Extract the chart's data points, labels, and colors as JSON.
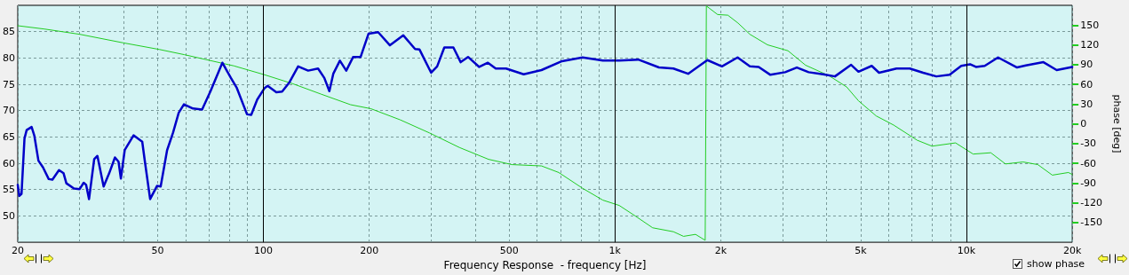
{
  "chart_data": {
    "type": "line",
    "xlabel": "Frequency Response  - frequency [Hz]",
    "y2label": "phase [deg]",
    "log": "x",
    "grid": true,
    "marker": "none",
    "line_style": "solid",
    "xlim": [
      20,
      20000
    ],
    "xticks": [
      20,
      {
        "value": 30,
        "label": null
      },
      {
        "value": 40,
        "label": null
      },
      50,
      {
        "value": 60,
        "label": null
      },
      {
        "value": 70,
        "label": null
      },
      {
        "value": 80,
        "label": null
      },
      {
        "value": 90,
        "label": null
      },
      100,
      200,
      {
        "value": 300,
        "label": null
      },
      {
        "value": 400,
        "label": null
      },
      500,
      {
        "value": 600,
        "label": null
      },
      {
        "value": 700,
        "label": null
      },
      {
        "value": 800,
        "label": null
      },
      {
        "value": 900,
        "label": null
      },
      {
        "value": 1000,
        "label": "1k"
      },
      {
        "value": 2000,
        "label": "2k"
      },
      {
        "value": 3000,
        "label": null
      },
      {
        "value": 4000,
        "label": null
      },
      {
        "value": 5000,
        "label": "5k"
      },
      {
        "value": 6000,
        "label": null
      },
      {
        "value": 7000,
        "label": null
      },
      {
        "value": 8000,
        "label": null
      },
      {
        "value": 9000,
        "label": null
      },
      {
        "value": 10000,
        "label": "10k"
      },
      {
        "value": 20000,
        "label": "20k"
      }
    ],
    "ylim": [
      45,
      90
    ],
    "yticks": [
      50,
      55,
      60,
      65,
      70,
      75,
      80,
      85
    ],
    "y2lim": [
      -180,
      180
    ],
    "y2ticks": [
      -150,
      -120,
      -90,
      -60,
      -30,
      0,
      30,
      60,
      90,
      120,
      150
    ],
    "annotations": [
      "show phase"
    ],
    "series": [
      {
        "color": "#0000c8",
        "x": [
          20,
          20.2,
          20.5,
          20.9,
          21.2,
          21.9,
          22.3,
          22.9,
          23.6,
          24.5,
          25.1,
          26.2,
          27,
          27.5,
          28.9,
          30,
          30.8,
          31.3,
          31.9,
          33,
          33.7,
          35.1,
          36.4,
          37.8,
          38.7,
          39.3,
          40.3,
          42.7,
          45.2,
          46,
          47.6,
          49.8,
          51,
          53.2,
          55.3,
          57.4,
          59.4,
          63,
          66.9,
          70.7,
          76.4,
          80.8,
          84,
          89.8,
          92.3,
          96,
          100.8,
          102.8,
          108.8,
          113,
          118.6,
          125.5,
          134,
          143,
          149,
          154,
          158,
          165,
          172,
          180,
          189,
          199,
          212,
          229,
          250,
          270,
          278,
          300,
          312,
          327,
          347,
          364,
          382,
          411,
          435,
          458,
          490,
          550,
          618,
          707,
          809,
          924,
          1028,
          1165,
          1334,
          1467,
          1615,
          1695,
          1832,
          2015,
          2233,
          2420,
          2564,
          2768,
          3049,
          3292,
          3556,
          3911,
          4225,
          4698,
          4929,
          5376,
          5640,
          6325,
          6900,
          7530,
          8210,
          8955,
          9665,
          10240,
          10640,
          11270,
          12300,
          13930,
          14760,
          16560,
          18060,
          20000
        ],
        "values": [
          55.9,
          53.8,
          54.2,
          64.7,
          66.3,
          66.9,
          65.2,
          60.5,
          59.2,
          57,
          56.9,
          58.7,
          58.1,
          56.2,
          55.2,
          55.1,
          56.3,
          55.9,
          53.2,
          60.8,
          61.4,
          55.6,
          58.1,
          61.1,
          60.3,
          57.1,
          62.5,
          65.3,
          64.1,
          60.3,
          53.2,
          55.7,
          55.6,
          62.5,
          65.8,
          69.6,
          71.2,
          70.4,
          70.2,
          73.7,
          79.1,
          76.2,
          74.3,
          69.3,
          69.2,
          72.1,
          74.3,
          74.7,
          73.5,
          73.6,
          75.4,
          78.4,
          77.6,
          78,
          76.2,
          73.7,
          77,
          79.5,
          77.6,
          80.2,
          80.2,
          84.6,
          84.9,
          82.4,
          84.3,
          81.7,
          81.6,
          77.2,
          78.4,
          82,
          82,
          79.2,
          80.2,
          78.3,
          79.1,
          78,
          78,
          76.9,
          77.7,
          79.4,
          80.1,
          79.5,
          79.5,
          79.7,
          78.2,
          78,
          77,
          78,
          79.6,
          78.4,
          80.1,
          78.4,
          78.3,
          76.8,
          77.3,
          78.2,
          77.3,
          76.9,
          76.5,
          78.7,
          77.4,
          78.5,
          77.2,
          78,
          78,
          77.2,
          76.5,
          76.8,
          78.5,
          78.8,
          78.3,
          78.5,
          80.1,
          78.2,
          78.6,
          79.2,
          77.7,
          78.3
        ]
      },
      {
        "color": "#22cc22",
        "axis": "y2",
        "x": [
          20,
          23.8,
          30,
          39.9,
          50.5,
          59.6,
          70.7,
          82.4,
          100,
          121,
          146,
          177,
          202,
          245,
          297,
          361,
          437,
          509,
          618,
          692,
          809,
          924,
          1028,
          1142,
          1280,
          1467,
          1567,
          1695,
          1806,
          1820,
          1959,
          2095,
          2240,
          2420,
          2716,
          3106,
          3486,
          4065,
          4562,
          4929,
          5534,
          6210,
          7243,
          7980,
          9310,
          10450,
          11730,
          12910,
          14490,
          15960,
          17550,
          19500,
          20000
        ],
        "values": [
          149,
          144,
          136,
          123,
          113,
          105,
          96,
          88,
          75,
          61,
          45,
          29,
          23,
          6,
          -14,
          -36,
          -54,
          -62,
          -64,
          -74,
          -98,
          -116,
          -124,
          -140,
          -158,
          -164,
          -171,
          -168,
          -177,
          179,
          166,
          165,
          153,
          136,
          120,
          111,
          89,
          73,
          56,
          35,
          12,
          -2,
          -25,
          -34,
          -29,
          -46,
          -44,
          -61,
          -58,
          -62,
          -78,
          -74,
          -77
        ]
      }
    ]
  }
}
